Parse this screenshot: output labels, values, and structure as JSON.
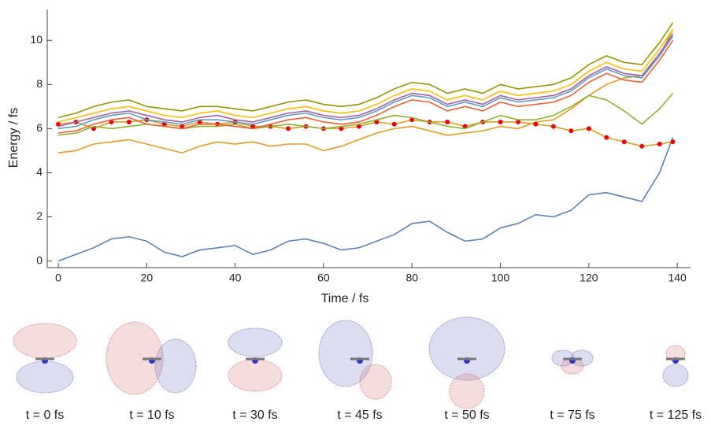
{
  "chart_data": {
    "type": "line",
    "x_label": "Time / fs",
    "y_label": "Energy / fs",
    "x": [
      0,
      4,
      8,
      12,
      16,
      20,
      24,
      28,
      32,
      36,
      40,
      44,
      48,
      52,
      56,
      60,
      64,
      68,
      72,
      76,
      80,
      84,
      88,
      92,
      96,
      100,
      104,
      108,
      112,
      116,
      120,
      124,
      128,
      132,
      136,
      139
    ],
    "series": [
      {
        "color": "#5e81b5",
        "values": [
          0.0,
          0.3,
          0.6,
          1.0,
          1.1,
          0.9,
          0.4,
          0.2,
          0.5,
          0.6,
          0.7,
          0.3,
          0.5,
          0.9,
          1.0,
          0.8,
          0.5,
          0.6,
          0.9,
          1.2,
          1.7,
          1.8,
          1.3,
          0.9,
          1.0,
          1.5,
          1.7,
          2.1,
          2.0,
          2.3,
          3.0,
          3.1,
          2.9,
          2.7,
          4.0,
          5.6
        ]
      },
      {
        "color": "#e19c24",
        "values": [
          4.9,
          5.0,
          5.3,
          5.4,
          5.5,
          5.3,
          5.1,
          4.9,
          5.2,
          5.4,
          5.3,
          5.4,
          5.2,
          5.3,
          5.3,
          5.0,
          5.2,
          5.5,
          5.8,
          6.0,
          6.1,
          5.9,
          5.7,
          5.8,
          5.9,
          6.1,
          6.0,
          6.3,
          6.4,
          6.9,
          7.5,
          8.0,
          8.3,
          8.4,
          9.3,
          10.5
        ]
      },
      {
        "color": "#e19c24",
        "marker_color": "#e8000b",
        "markers": true,
        "values": [
          6.2,
          6.3,
          6.0,
          6.3,
          6.3,
          6.4,
          6.2,
          6.1,
          6.3,
          6.2,
          6.3,
          6.1,
          6.1,
          6.0,
          6.1,
          6.0,
          6.0,
          6.1,
          6.3,
          6.2,
          6.4,
          6.3,
          6.3,
          6.1,
          6.3,
          6.3,
          6.3,
          6.2,
          6.1,
          5.9,
          6.0,
          5.6,
          5.4,
          5.2,
          5.3,
          5.4
        ]
      },
      {
        "color": "#8fb032",
        "values": [
          5.7,
          5.8,
          6.1,
          6.0,
          6.1,
          6.2,
          6.1,
          6.0,
          6.1,
          6.1,
          6.2,
          6.0,
          6.1,
          6.2,
          6.1,
          6.0,
          6.1,
          6.2,
          6.4,
          6.6,
          6.5,
          6.3,
          6.1,
          6.0,
          6.3,
          6.6,
          6.4,
          6.4,
          6.6,
          7.0,
          7.5,
          7.3,
          6.8,
          6.2,
          6.9,
          7.6
        ]
      },
      {
        "color": "#eb6235",
        "values": [
          5.8,
          5.9,
          6.2,
          6.4,
          6.5,
          6.2,
          6.1,
          6.0,
          6.2,
          6.2,
          6.1,
          6.0,
          6.2,
          6.4,
          6.5,
          6.3,
          6.2,
          6.3,
          6.6,
          7.0,
          7.3,
          7.2,
          6.8,
          7.0,
          6.8,
          7.2,
          7.0,
          7.1,
          7.2,
          7.5,
          8.1,
          8.5,
          8.2,
          8.1,
          9.1,
          10.0
        ]
      },
      {
        "color": "#5d9ec7",
        "values": [
          6.0,
          6.1,
          6.4,
          6.6,
          6.7,
          6.4,
          6.3,
          6.2,
          6.4,
          6.4,
          6.3,
          6.2,
          6.4,
          6.6,
          6.7,
          6.5,
          6.4,
          6.5,
          6.8,
          7.2,
          7.5,
          7.4,
          7.0,
          7.2,
          7.0,
          7.4,
          7.2,
          7.3,
          7.4,
          7.7,
          8.3,
          8.7,
          8.4,
          8.3,
          9.3,
          10.2
        ]
      },
      {
        "color": "#a5609d",
        "values": [
          6.1,
          6.3,
          6.5,
          6.7,
          6.8,
          6.6,
          6.4,
          6.3,
          6.5,
          6.6,
          6.4,
          6.3,
          6.5,
          6.7,
          6.8,
          6.6,
          6.5,
          6.6,
          6.9,
          7.3,
          7.6,
          7.5,
          7.1,
          7.3,
          7.1,
          7.5,
          7.3,
          7.4,
          7.5,
          7.8,
          8.4,
          8.8,
          8.5,
          8.4,
          9.4,
          10.3
        ]
      },
      {
        "color": "#ffbf00",
        "values": [
          6.3,
          6.5,
          6.7,
          6.9,
          7.0,
          6.8,
          6.6,
          6.5,
          6.7,
          6.8,
          6.6,
          6.5,
          6.7,
          6.9,
          7.0,
          6.8,
          6.7,
          6.8,
          7.1,
          7.5,
          7.8,
          7.7,
          7.3,
          7.5,
          7.3,
          7.7,
          7.5,
          7.6,
          7.7,
          8.0,
          8.6,
          9.0,
          8.7,
          8.6,
          9.6,
          10.5
        ]
      },
      {
        "color": "#929600",
        "values": [
          6.5,
          6.7,
          7.0,
          7.2,
          7.3,
          7.0,
          6.9,
          6.8,
          7.0,
          7.0,
          6.9,
          6.8,
          7.0,
          7.2,
          7.3,
          7.1,
          7.0,
          7.1,
          7.4,
          7.8,
          8.1,
          8.0,
          7.6,
          7.8,
          7.6,
          8.0,
          7.8,
          7.9,
          8.0,
          8.3,
          8.9,
          9.3,
          9.0,
          8.9,
          9.9,
          10.8
        ]
      }
    ],
    "xlim": [
      -2.5,
      143
    ],
    "ylim": [
      -0.3,
      11.4
    ],
    "xticks": [
      0,
      20,
      40,
      60,
      80,
      100,
      120,
      140
    ],
    "yticks": [
      0,
      2,
      4,
      6,
      8,
      10
    ]
  },
  "panel_labels": [
    "t = 0 fs",
    "t = 10 fs",
    "t = 30 fs",
    "t = 45 fs",
    "t = 50 fs",
    "t = 75 fs",
    "t = 125 fs"
  ]
}
